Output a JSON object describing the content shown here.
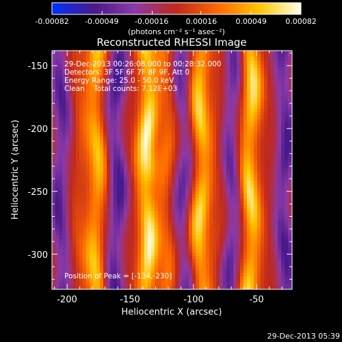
{
  "chart_data": {
    "type": "heatmap",
    "title": "Reconstructed RHESSI Image",
    "xlabel": "Heliocentric X (arcsec)",
    "ylabel": "Heliocentric Y (arcsec)",
    "xlim": [
      -212,
      -22
    ],
    "ylim": [
      -328,
      -138
    ],
    "x_ticks": [
      -200,
      -150,
      -100,
      -50
    ],
    "y_ticks": [
      -150,
      -200,
      -250,
      -300
    ],
    "colorbar": {
      "min": -0.00082,
      "max": 0.00082,
      "tick_values": [
        -0.00082,
        -0.00049,
        -0.00016,
        0.00016,
        0.00049,
        0.00082
      ],
      "tick_labels": [
        "-0.00082",
        "-0.00049",
        "-0.00016",
        "0.00016",
        "0.00049",
        "0.00082"
      ],
      "units": "(photons cm⁻² s⁻¹ asec⁻²)",
      "colormap": [
        "#0030ff",
        "#4a1888",
        "#8a3aa8",
        "#c0281c",
        "#ff6a00",
        "#ffc400",
        "#ffffe8"
      ]
    },
    "info_lines": [
      "29-Dec-2013 00:26:08.000 to 00:28:32.000",
      "Detectors: 3F 5F 6F 7F 8F 9F, Att 0",
      "Energy Range: 25.0 - 50.0 keV",
      "Clean    Total counts: 7.12E+03"
    ],
    "peak_label": "Position of Peak = [-134,-230]",
    "peak": [
      -134,
      -230
    ],
    "timestamp": "29-Dec-2013 05:39",
    "stripes": [
      {
        "x": -205,
        "amp": -0.00055
      },
      {
        "x": -190,
        "amp": 0.00015
      },
      {
        "x": -177,
        "amp": 0.00058
      },
      {
        "x": -161,
        "amp": -0.0006
      },
      {
        "x": -150,
        "amp": 0.0
      },
      {
        "x": -137,
        "amp": 0.0008
      },
      {
        "x": -122,
        "amp": 0.0003
      },
      {
        "x": -108,
        "amp": -0.00045
      },
      {
        "x": -94,
        "amp": 0.00068
      },
      {
        "x": -80,
        "amp": 0.0001
      },
      {
        "x": -70,
        "amp": -0.0005
      },
      {
        "x": -55,
        "amp": 0.00072
      },
      {
        "x": -40,
        "amp": 0.0
      },
      {
        "x": -28,
        "amp": -0.00058
      }
    ]
  }
}
